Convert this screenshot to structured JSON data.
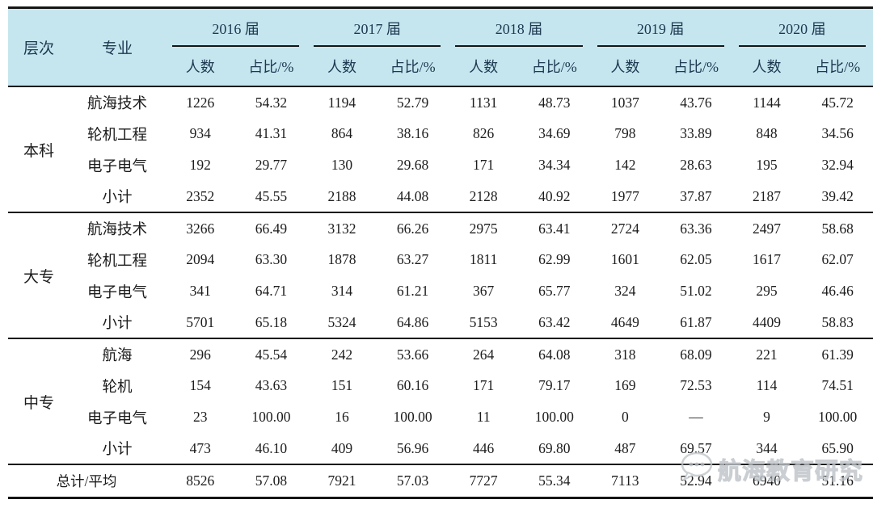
{
  "table": {
    "header": {
      "level": "层次",
      "major": "专业",
      "year_groups": [
        {
          "year": "2016 届",
          "count_label": "人数",
          "ratio_label": "占比/%"
        },
        {
          "year": "2017 届",
          "count_label": "人数",
          "ratio_label": "占比/%"
        },
        {
          "year": "2018 届",
          "count_label": "人数",
          "ratio_label": "占比/%"
        },
        {
          "year": "2019 届",
          "count_label": "人数",
          "ratio_label": "占比/%"
        },
        {
          "year": "2020 届",
          "count_label": "人数",
          "ratio_label": "占比/%"
        }
      ]
    },
    "groups": [
      {
        "level": "本科",
        "rows": [
          {
            "major": "航海技术",
            "values": [
              "1226",
              "54.32",
              "1194",
              "52.79",
              "1131",
              "48.73",
              "1037",
              "43.76",
              "1144",
              "45.72"
            ]
          },
          {
            "major": "轮机工程",
            "values": [
              "934",
              "41.31",
              "864",
              "38.16",
              "826",
              "34.69",
              "798",
              "33.89",
              "848",
              "34.56"
            ]
          },
          {
            "major": "电子电气",
            "values": [
              "192",
              "29.77",
              "130",
              "29.68",
              "171",
              "34.34",
              "142",
              "28.63",
              "195",
              "32.94"
            ]
          },
          {
            "major": "小计",
            "values": [
              "2352",
              "45.55",
              "2188",
              "44.08",
              "2128",
              "40.92",
              "1977",
              "37.87",
              "2187",
              "39.42"
            ]
          }
        ]
      },
      {
        "level": "大专",
        "rows": [
          {
            "major": "航海技术",
            "values": [
              "3266",
              "66.49",
              "3132",
              "66.26",
              "2975",
              "63.41",
              "2724",
              "63.36",
              "2497",
              "58.68"
            ]
          },
          {
            "major": "轮机工程",
            "values": [
              "2094",
              "63.30",
              "1878",
              "63.27",
              "1811",
              "62.99",
              "1601",
              "62.05",
              "1617",
              "62.07"
            ]
          },
          {
            "major": "电子电气",
            "values": [
              "341",
              "64.71",
              "314",
              "61.21",
              "367",
              "65.77",
              "324",
              "51.02",
              "295",
              "46.46"
            ]
          },
          {
            "major": "小计",
            "values": [
              "5701",
              "65.18",
              "5324",
              "64.86",
              "5153",
              "63.42",
              "4649",
              "61.87",
              "4409",
              "58.83"
            ]
          }
        ]
      },
      {
        "level": "中专",
        "rows": [
          {
            "major": "航海",
            "values": [
              "296",
              "45.54",
              "242",
              "53.66",
              "264",
              "64.08",
              "318",
              "68.09",
              "221",
              "61.39"
            ]
          },
          {
            "major": "轮机",
            "values": [
              "154",
              "43.63",
              "151",
              "60.16",
              "171",
              "79.17",
              "169",
              "72.53",
              "114",
              "74.51"
            ]
          },
          {
            "major": "电子电气",
            "values": [
              "23",
              "100.00",
              "16",
              "100.00",
              "11",
              "100.00",
              "0",
              "—",
              "9",
              "100.00"
            ]
          },
          {
            "major": "小计",
            "values": [
              "473",
              "46.10",
              "409",
              "56.96",
              "446",
              "69.80",
              "487",
              "69.57",
              "344",
              "65.90"
            ]
          }
        ]
      }
    ],
    "total_row": {
      "label": "总计/平均",
      "values": [
        "8526",
        "57.08",
        "7921",
        "57.03",
        "7727",
        "55.34",
        "7113",
        "52.94",
        "6940",
        "51.16"
      ]
    }
  },
  "watermark": {
    "text": "航海教育研究",
    "logo": "speech-bubble-dots-icon"
  },
  "colors": {
    "header_bg": "#c5e6ef",
    "header_text": "#1d3850",
    "body_text": "#1c1c1c",
    "rule_line": "#151515",
    "watermark": "#c6cbcf"
  }
}
